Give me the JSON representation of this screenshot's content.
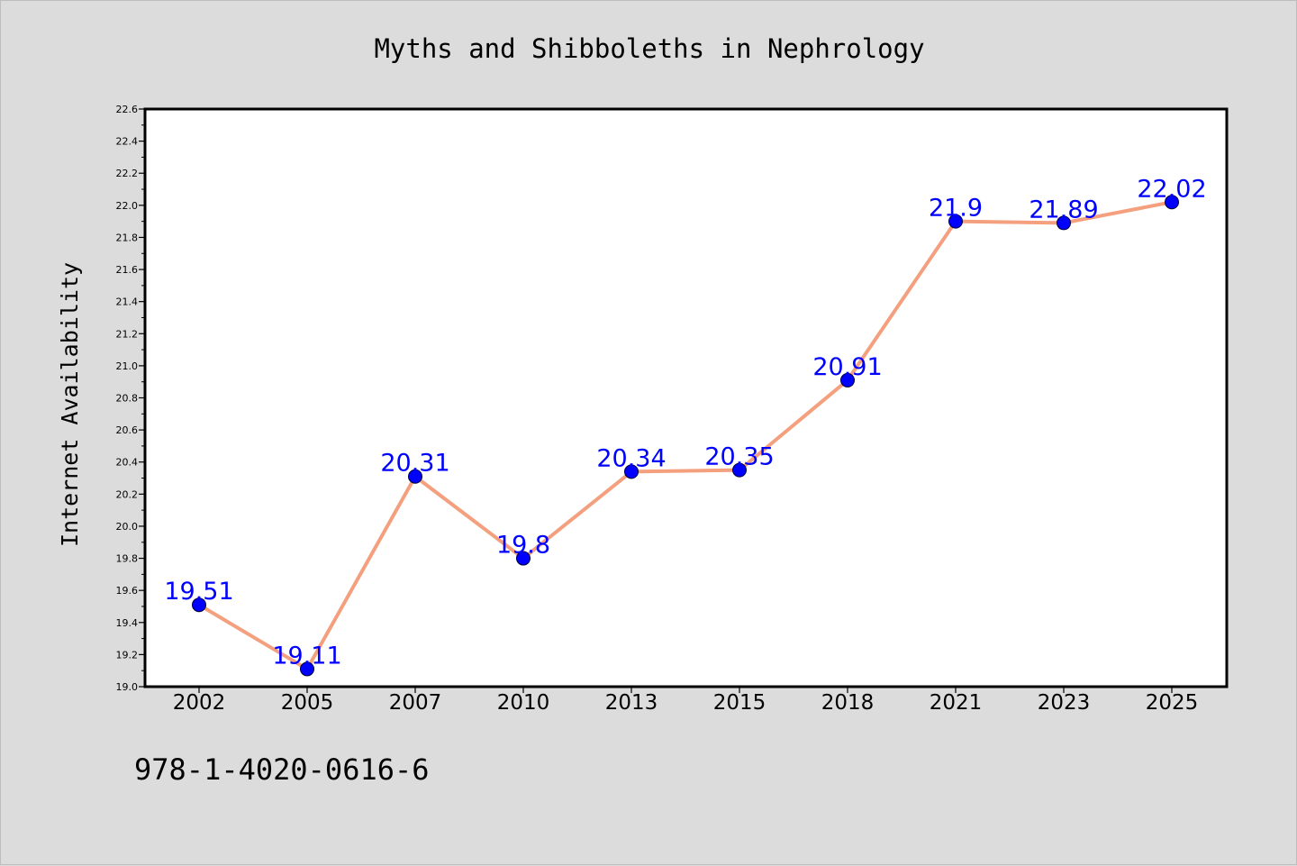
{
  "chart_data": {
    "type": "line",
    "title": "Myths and Shibboleths in Nephrology",
    "ylabel": "Internet Availability",
    "xlabel": "",
    "categories": [
      "2002",
      "2005",
      "2007",
      "2010",
      "2013",
      "2015",
      "2018",
      "2021",
      "2023",
      "2025"
    ],
    "series": [
      {
        "values": [
          19.51,
          19.11,
          20.31,
          19.8,
          20.34,
          20.35,
          20.91,
          21.9,
          21.89,
          22.02
        ],
        "labels": [
          "19.51",
          "19.11",
          "20.31",
          "19.8",
          "20.34",
          "20.35",
          "20.91",
          "21.9",
          "21.89",
          "22.02"
        ],
        "line_color": "#f4a07e",
        "marker_color": "#0000ff"
      }
    ],
    "ylim": [
      19.0,
      22.6
    ],
    "ytick_labels": [
      "19.0",
      "19.2",
      "19.4",
      "19.6",
      "19.8",
      "20.0",
      "20.2",
      "20.4",
      "20.6",
      "20.8",
      "21.0",
      "21.2",
      "21.4",
      "21.6",
      "21.8",
      "22.0",
      "22.2",
      "22.4",
      "22.6"
    ],
    "grid": false,
    "legend": "none",
    "data_label_color": "#0000ff"
  },
  "footer": {
    "isbn": "978-1-4020-0616-6"
  }
}
